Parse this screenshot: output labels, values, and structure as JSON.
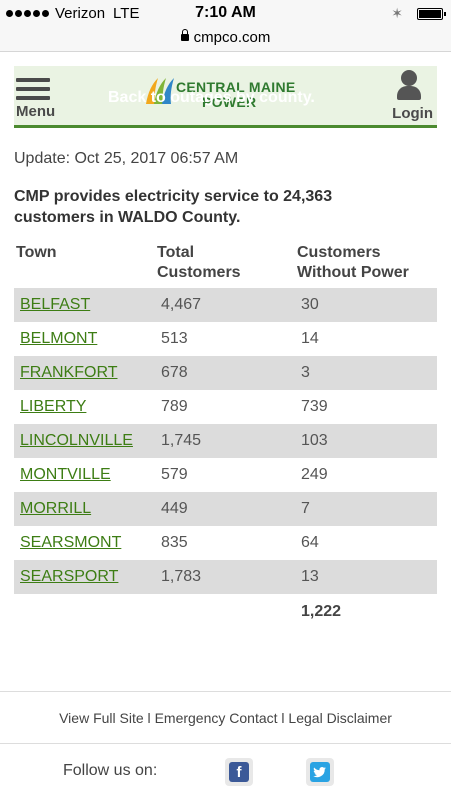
{
  "status_bar": {
    "carrier": "Verizon",
    "network": "LTE",
    "time": "7:10 AM"
  },
  "url_bar": {
    "url": "cmpco.com"
  },
  "header": {
    "menu_label": "Menu",
    "logo_line1": "CENTRAL MAINE",
    "logo_line2": "POWER",
    "back_link": "Back to outages by county.",
    "login_label": "Login",
    "colors": {
      "background": "#eaf3e3",
      "accent": "#4b8a2f",
      "logo_green": "#2f7a2f"
    }
  },
  "update_text": "Update: Oct 25, 2017 06:57 AM",
  "intro_text": "CMP provides electricity service to 24,363 customers in WALDO County.",
  "table": {
    "headers": {
      "town": "Town",
      "total_line1": "Total",
      "total_line2": "Customers",
      "without_line1": "Customers",
      "without_line2": "Without Power"
    },
    "rows": [
      {
        "town": "BELFAST",
        "total": "4,467",
        "without": "30"
      },
      {
        "town": "BELMONT",
        "total": "513",
        "without": "14"
      },
      {
        "town": "FRANKFORT",
        "total": "678",
        "without": "3"
      },
      {
        "town": "LIBERTY",
        "total": "789",
        "without": "739"
      },
      {
        "town": "LINCOLNVILLE",
        "total": "1,745",
        "without": "103"
      },
      {
        "town": "MONTVILLE",
        "total": "579",
        "without": "249"
      },
      {
        "town": "MORRILL",
        "total": "449",
        "without": "7"
      },
      {
        "town": "SEARSMONT",
        "total": "835",
        "without": "64"
      },
      {
        "town": "SEARSPORT",
        "total": "1,783",
        "without": "13"
      }
    ],
    "total_without": "1,222",
    "colors": {
      "shaded_row": "#dcdcdc",
      "link": "#3d7d14"
    }
  },
  "footer": {
    "view_full_site": "View Full Site",
    "emergency_contact": "Emergency Contact",
    "legal_disclaimer": "Legal Disclaimer",
    "separator": "l",
    "follow_us": "Follow us on:",
    "facebook_glyph": "f",
    "twitter_icon": "twitter-icon",
    "colors": {
      "facebook": "#3b5998",
      "twitter": "#2aa3e3"
    }
  }
}
